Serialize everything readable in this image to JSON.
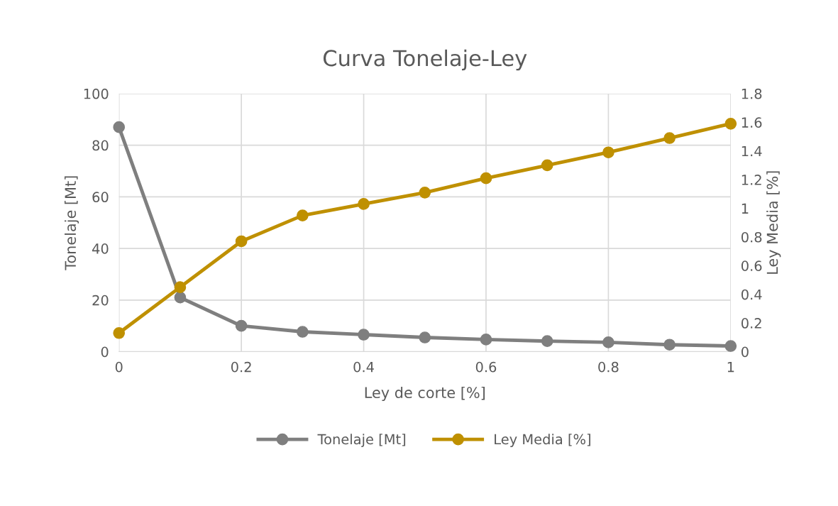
{
  "chart_data": {
    "type": "line",
    "title": "Curva Tonelaje-Ley",
    "xlabel": "Ley de corte [%]",
    "ylabel": "Tonelaje [Mt]",
    "y2label": "Ley Media [%]",
    "x": [
      0,
      0.1,
      0.2,
      0.3,
      0.4,
      0.5,
      0.6,
      0.7,
      0.8,
      0.9,
      1
    ],
    "series": [
      {
        "name": "Tonelaje [Mt]",
        "color": "#7f7f7f",
        "values": [
          87,
          21,
          10,
          7.7,
          6.6,
          5.5,
          4.7,
          4.1,
          3.6,
          2.7,
          2.2
        ]
      },
      {
        "name": "Ley Media [%]",
        "color": "#bf9000",
        "axis": "y2",
        "values": [
          0.13,
          0.45,
          0.77,
          0.95,
          1.03,
          1.11,
          1.21,
          1.3,
          1.39,
          1.49,
          1.59
        ]
      }
    ],
    "xlim": [
      0,
      1
    ],
    "xticks": [
      0,
      0.2,
      0.4,
      0.6,
      0.8,
      1
    ],
    "ylim": [
      0,
      100
    ],
    "yticks": [
      0,
      20,
      40,
      60,
      80,
      100
    ],
    "y2lim": [
      0,
      1.8
    ],
    "y2ticks": [
      0,
      0.2,
      0.4,
      0.6,
      0.8,
      1,
      1.2,
      1.4,
      1.6,
      1.8
    ],
    "grid": true,
    "legend": "bottom",
    "marker": "circle",
    "line_style": "solid"
  }
}
